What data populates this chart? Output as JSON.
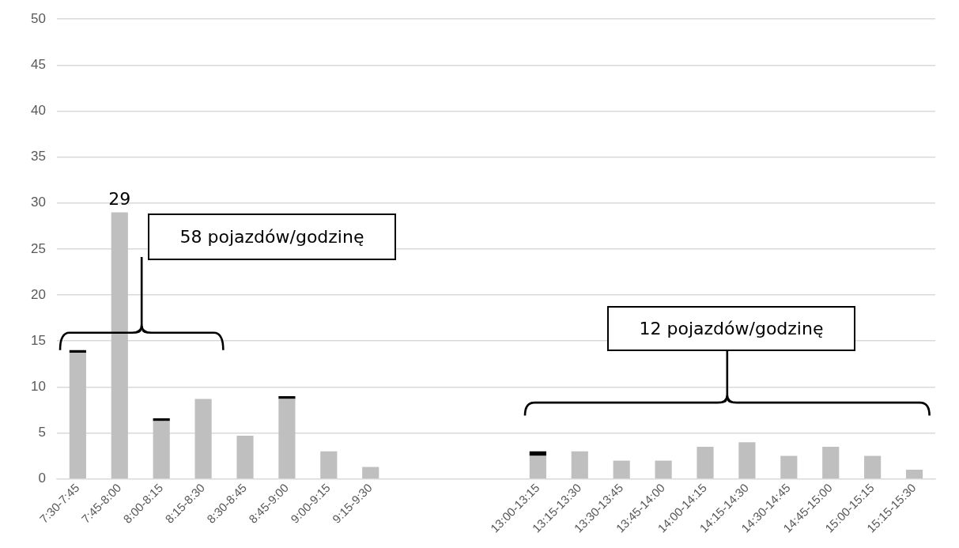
{
  "chart_data": {
    "type": "bar",
    "stacked": true,
    "categories": [
      "7:30-7:45",
      "7:45-8:00",
      "8:00-8:15",
      "8:15-8:30",
      "8:30-8:45",
      "8:45-9:00",
      "9:00-9:15",
      "9:15-9:30",
      null,
      null,
      null,
      "13:00-13:15",
      "13:15-13:30",
      "13:30-13:45",
      "13:45-14:00",
      "14:00-14:15",
      "14:15-14:30",
      "14:30-14:45",
      "14:45-15:00",
      "15:00-15:15",
      "15:15-15:30"
    ],
    "series": [
      {
        "color": "#bfbfbf",
        "values": [
          13.7,
          29,
          6.3,
          8.7,
          4.7,
          8.7,
          3.0,
          1.3,
          null,
          null,
          null,
          2.5,
          3.0,
          2.0,
          2.0,
          3.5,
          4.0,
          2.5,
          3.5,
          2.5,
          1.0
        ]
      },
      {
        "color": "#000000",
        "values": [
          0.3,
          null,
          0.3,
          null,
          null,
          0.3,
          null,
          null,
          null,
          null,
          null,
          0.5,
          null,
          null,
          null,
          null,
          null,
          null,
          null,
          null,
          null
        ]
      }
    ],
    "totals": [
      null,
      "29",
      null,
      null,
      null,
      null,
      null,
      null,
      null,
      null,
      null,
      null,
      null,
      null,
      null,
      null,
      null,
      null,
      null,
      null,
      null
    ],
    "annotations": [
      "58 pojazdów/godzinę",
      "12 pojazdów/godzinę"
    ],
    "ylim": [
      0,
      50
    ],
    "yticks": [
      0,
      5,
      10,
      15,
      20,
      25,
      30,
      35,
      40,
      45,
      50
    ],
    "grid": "y",
    "legend": false
  }
}
